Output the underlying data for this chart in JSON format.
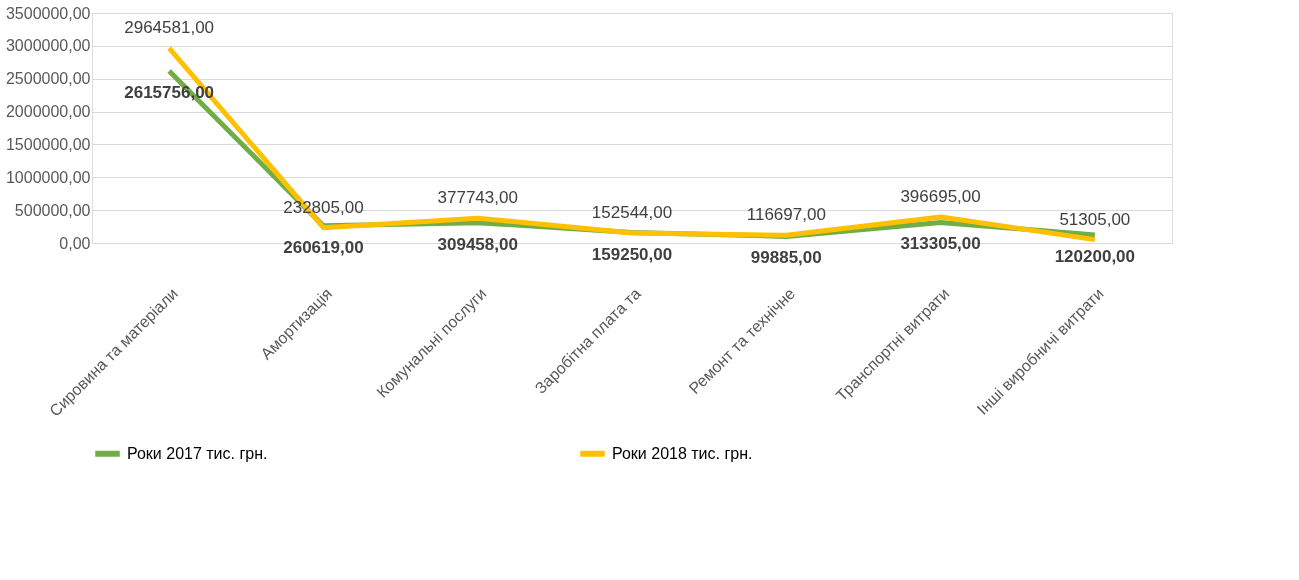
{
  "chart_data": {
    "type": "line",
    "categories": [
      "Сировина та матеріали",
      "Амортизація",
      "Комунальні послуги",
      "Заробітна плата та",
      "Ремонт та технічне",
      "Транспортні витрати",
      "Інші виробничі витрати"
    ],
    "series": [
      {
        "name": "Роки 2017 тис. грн.",
        "color": "#70ad47",
        "values": [
          2615756,
          260619,
          309458,
          159250,
          99885,
          313305,
          120200
        ],
        "value_labels": [
          "2615756,00",
          "260619,00",
          "309458,00",
          "159250,00",
          "99885,00",
          "313305,00",
          "120200,00"
        ]
      },
      {
        "name": "Роки 2018 тис. грн.",
        "color": "#ffc000",
        "values": [
          2964581,
          232805,
          377743,
          152544,
          116697,
          396695,
          51305
        ],
        "value_labels": [
          "2964581,00",
          "232805,00",
          "377743,00",
          "152544,00",
          "116697,00",
          "396695,00",
          "51305,00"
        ]
      }
    ],
    "ylim": [
      0,
      3500000
    ],
    "yticks": [
      {
        "value": 0,
        "label": "0,00"
      },
      {
        "value": 500000,
        "label": "500000,00"
      },
      {
        "value": 1000000,
        "label": "1000000,00"
      },
      {
        "value": 1500000,
        "label": "1500000,00"
      },
      {
        "value": 2000000,
        "label": "2000000,00"
      },
      {
        "value": 2500000,
        "label": "2500000,00"
      },
      {
        "value": 3000000,
        "label": "3000000,00"
      },
      {
        "value": 3500000,
        "label": "3500000,00"
      }
    ],
    "grid": "y",
    "legend": "bottom",
    "marker": "none",
    "line_style": "solid"
  }
}
